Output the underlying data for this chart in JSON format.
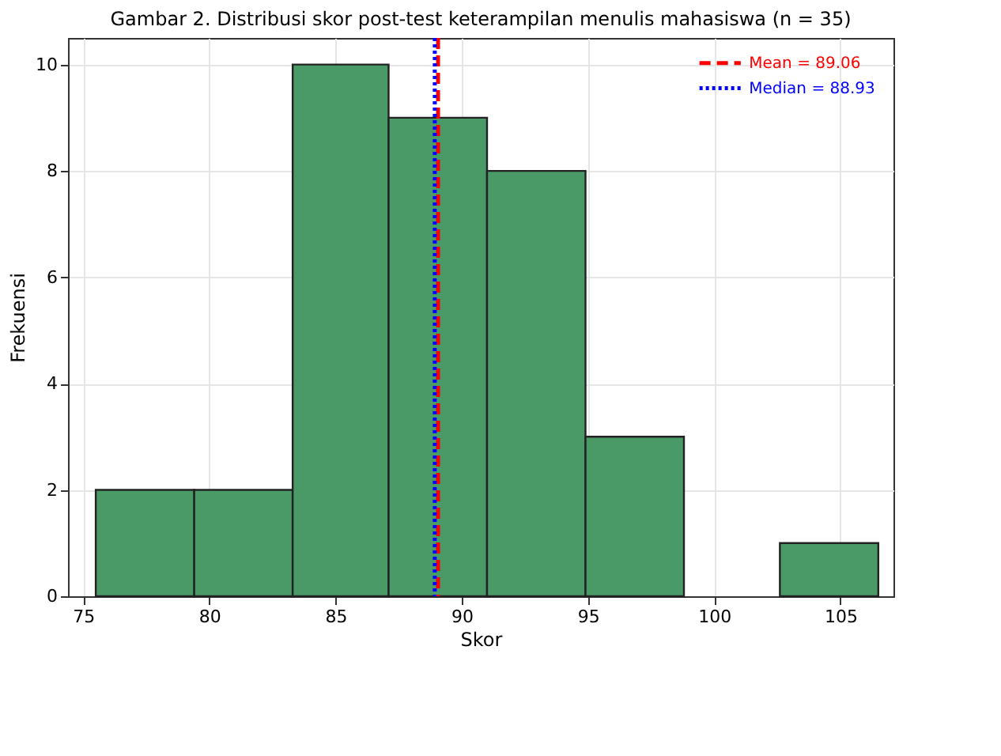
{
  "chart_data": {
    "type": "histogram",
    "title": "Gambar 2. Distribusi skor post-test keterampilan menulis mahasiswa (n = 35)",
    "xlabel": "Skor",
    "ylabel": "Frekuensi",
    "bins": [
      75.5,
      79.4,
      83.3,
      87.1,
      91.0,
      94.9,
      98.8,
      102.6,
      106.5
    ],
    "values": [
      2,
      2,
      10,
      9,
      8,
      3,
      0,
      1
    ],
    "color": "#4a9a68",
    "xlim": [
      74.4,
      107.1
    ],
    "xticks": [
      75,
      80,
      85,
      90,
      95,
      100,
      105
    ],
    "ylim": [
      0,
      10.5
    ],
    "yticks": [
      0,
      2,
      4,
      6,
      8,
      10
    ],
    "ref_lines": [
      {
        "axis": "x",
        "value": 89.06,
        "label": "Mean = 89.06",
        "color": "#ff0000",
        "line_style": "dashed"
      },
      {
        "axis": "x",
        "value": 88.93,
        "label": "Median = 88.93",
        "color": "#0000ff",
        "line_style": "dotted"
      }
    ],
    "grid": true,
    "legend": "top right"
  }
}
